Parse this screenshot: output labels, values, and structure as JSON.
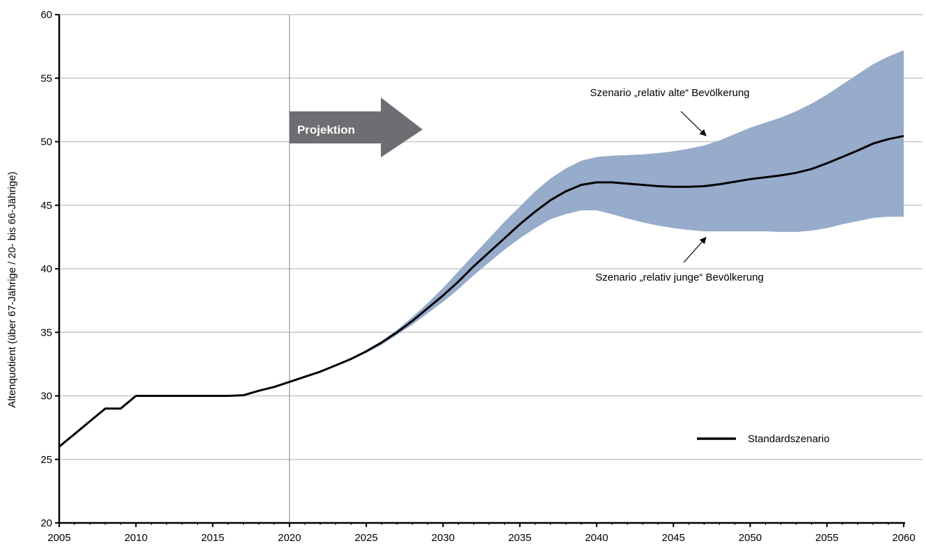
{
  "chart_data": {
    "type": "line",
    "title": "",
    "xlabel": "",
    "ylabel": "Altenquotient (über 67-Jährige / 20- bis 66-Jährige)",
    "xlim": [
      2005,
      2060
    ],
    "ylim": [
      20,
      60
    ],
    "x_ticks": [
      2005,
      2010,
      2015,
      2020,
      2025,
      2030,
      2035,
      2040,
      2045,
      2050,
      2055,
      2060
    ],
    "y_ticks": [
      20,
      25,
      30,
      35,
      40,
      45,
      50,
      55,
      60
    ],
    "grid": "horizontal",
    "legend_position": "lower-right",
    "projection_start": 2020,
    "projection_label": "Projektion",
    "colors": {
      "line": "#000000",
      "band": "#97abca",
      "grid": "#c8c8c8",
      "arrow": "#6d6e71",
      "vline": "#808080"
    },
    "series": [
      {
        "name": "Standardszenario",
        "x": [
          2005,
          2006,
          2007,
          2008,
          2009,
          2010,
          2011,
          2012,
          2013,
          2014,
          2015,
          2016,
          2017,
          2018,
          2019,
          2020,
          2021,
          2022,
          2023,
          2024,
          2025,
          2026,
          2027,
          2028,
          2029,
          2030,
          2031,
          2032,
          2033,
          2034,
          2035,
          2036,
          2037,
          2038,
          2039,
          2040,
          2041,
          2042,
          2043,
          2044,
          2045,
          2046,
          2047,
          2048,
          2049,
          2050,
          2051,
          2052,
          2053,
          2054,
          2055,
          2056,
          2057,
          2058,
          2059,
          2060
        ],
        "y": [
          26.0,
          27.0,
          28.0,
          29.0,
          29.0,
          30.0,
          30.0,
          30.0,
          30.0,
          30.0,
          30.0,
          30.0,
          30.05,
          30.4,
          30.7,
          31.1,
          31.5,
          31.9,
          32.4,
          32.9,
          33.5,
          34.2,
          35.0,
          35.9,
          36.9,
          37.9,
          39.0,
          40.2,
          41.3,
          42.4,
          43.5,
          44.5,
          45.4,
          46.1,
          46.6,
          46.8,
          46.8,
          46.7,
          46.6,
          46.5,
          46.45,
          46.45,
          46.5,
          46.65,
          46.85,
          47.05,
          47.2,
          47.35,
          47.55,
          47.85,
          48.3,
          48.8,
          49.3,
          49.85,
          50.2,
          50.45
        ]
      }
    ],
    "band": {
      "x": [
        2024,
        2025,
        2026,
        2027,
        2028,
        2029,
        2030,
        2031,
        2032,
        2033,
        2034,
        2035,
        2036,
        2037,
        2038,
        2039,
        2040,
        2041,
        2042,
        2043,
        2044,
        2045,
        2046,
        2047,
        2048,
        2049,
        2050,
        2051,
        2052,
        2053,
        2054,
        2055,
        2056,
        2057,
        2058,
        2059,
        2060
      ],
      "upper": [
        32.9,
        33.6,
        34.3,
        35.2,
        36.2,
        37.3,
        38.5,
        39.8,
        41.1,
        42.4,
        43.7,
        44.9,
        46.1,
        47.1,
        47.9,
        48.5,
        48.8,
        48.9,
        48.95,
        49.0,
        49.1,
        49.25,
        49.45,
        49.7,
        50.1,
        50.6,
        51.1,
        51.5,
        51.9,
        52.4,
        53.0,
        53.7,
        54.5,
        55.3,
        56.1,
        56.7,
        57.2
      ],
      "lower": [
        32.9,
        33.4,
        34.0,
        34.8,
        35.6,
        36.5,
        37.4,
        38.4,
        39.5,
        40.5,
        41.5,
        42.4,
        43.2,
        43.9,
        44.3,
        44.6,
        44.6,
        44.3,
        43.95,
        43.65,
        43.4,
        43.2,
        43.05,
        42.95,
        42.95,
        42.95,
        42.95,
        42.95,
        42.9,
        42.9,
        43.0,
        43.2,
        43.5,
        43.75,
        44.0,
        44.1,
        44.1
      ]
    },
    "annotations": {
      "upper": "Szenario „relativ alte“ Bevölkerung",
      "lower": "Szenario „relativ junge“ Bevölkerung"
    }
  }
}
